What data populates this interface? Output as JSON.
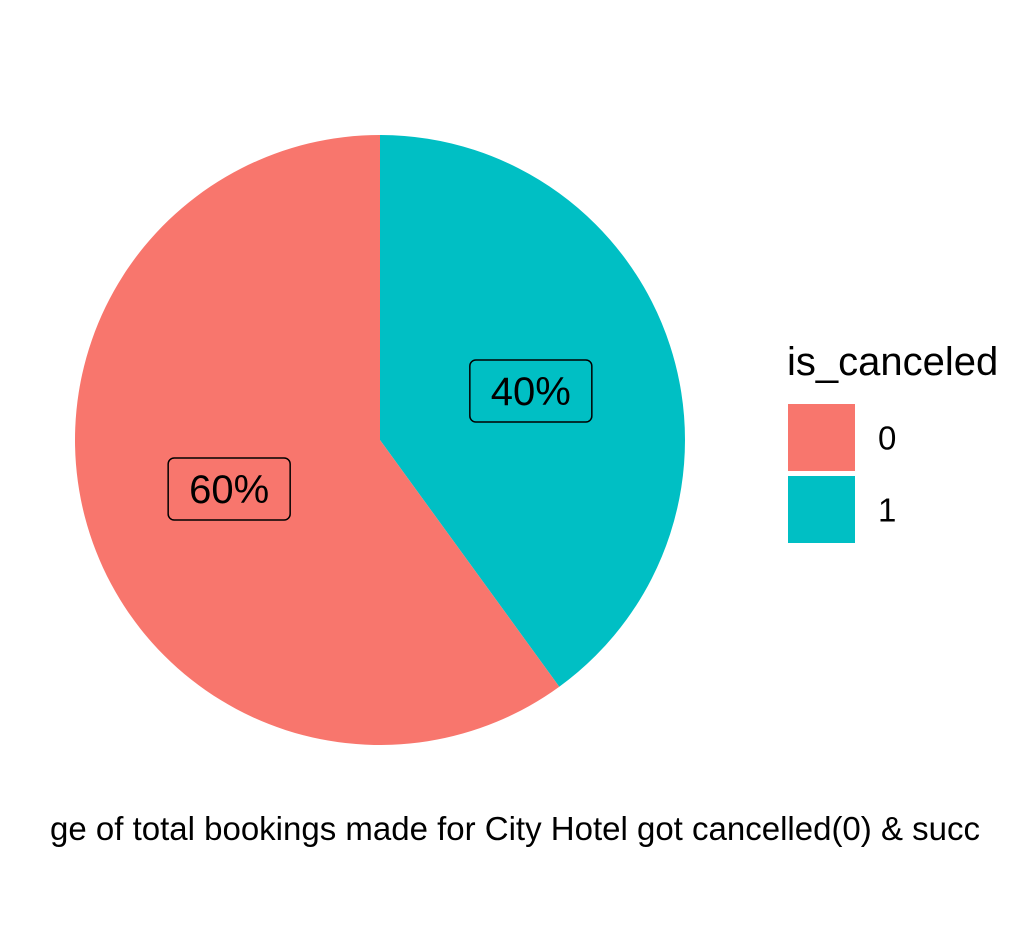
{
  "chart_data": {
    "type": "pie",
    "title": "",
    "xlabel": "ge of total bookings made for City Hotel got cancelled(0) & succ",
    "ylabel": "",
    "legend": {
      "title": "is_canceled",
      "placement": "right"
    },
    "categories": [
      "0",
      "1"
    ],
    "values": [
      60,
      40
    ],
    "labels": [
      "60%",
      "40%"
    ],
    "colors": [
      "#F8766D",
      "#00BFC4"
    ]
  }
}
